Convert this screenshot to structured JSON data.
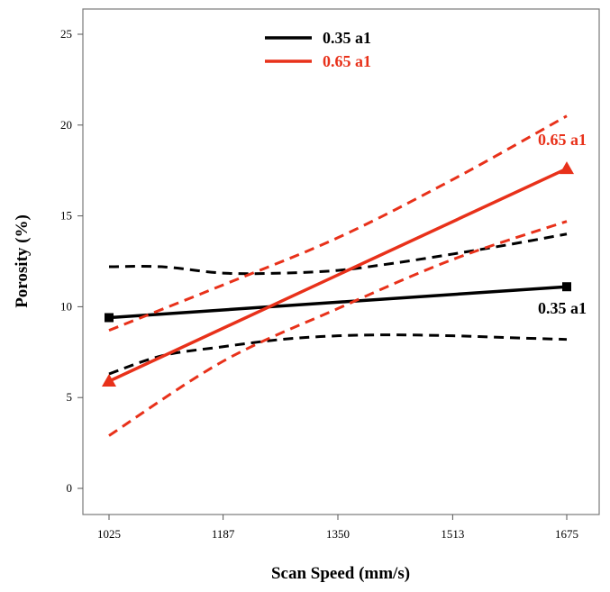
{
  "chart_data": {
    "type": "line",
    "xlabel": "Scan Speed (mm/s)",
    "ylabel": "Porosity (%)",
    "xlim": [
      1025,
      1675
    ],
    "ylim": [
      0,
      25
    ],
    "x_ticks": [
      "1025",
      "1187",
      "1350",
      "1513",
      "1675"
    ],
    "y_ticks": [
      "0",
      "5",
      "10",
      "15",
      "20",
      "25"
    ],
    "grid": false,
    "legend_position": "top-center",
    "series": [
      {
        "name": "0.35 a1",
        "color": "#000000",
        "marker": "square",
        "end_label": "0.35 a1",
        "x": [
          1025,
          1675
        ],
        "y": [
          9.4,
          11.1
        ],
        "ci_upper": {
          "x": [
            1025,
            1100,
            1187,
            1270,
            1350,
            1430,
            1513,
            1590,
            1675
          ],
          "y": [
            12.2,
            12.2,
            11.85,
            11.85,
            12.0,
            12.4,
            12.9,
            13.4,
            14.0
          ]
        },
        "ci_lower": {
          "x": [
            1025,
            1100,
            1187,
            1270,
            1350,
            1430,
            1513,
            1590,
            1675
          ],
          "y": [
            6.3,
            7.3,
            7.8,
            8.2,
            8.4,
            8.45,
            8.4,
            8.3,
            8.2
          ]
        }
      },
      {
        "name": "0.65 a1",
        "color": "#e8311a",
        "marker": "triangle",
        "end_label": "0.65 a1",
        "x": [
          1025,
          1675
        ],
        "y": [
          5.9,
          17.6
        ],
        "ci_upper": {
          "x": [
            1025,
            1187,
            1350,
            1513,
            1675
          ],
          "y": [
            8.7,
            11.2,
            13.8,
            17.0,
            20.5
          ]
        },
        "ci_lower": {
          "x": [
            1025,
            1187,
            1350,
            1513,
            1675
          ],
          "y": [
            2.9,
            7.0,
            9.9,
            12.6,
            14.7
          ]
        }
      }
    ]
  }
}
